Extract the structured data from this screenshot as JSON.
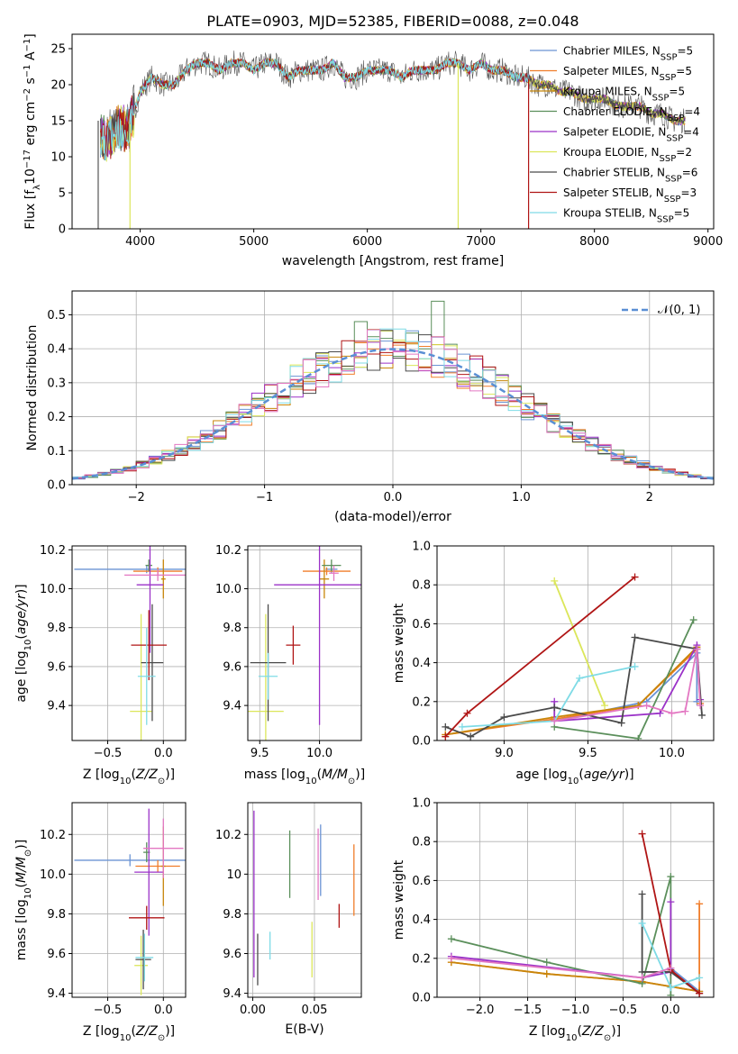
{
  "figure": {
    "title": "PLATE=0903, MJD=52385, FIBERID=0088, z=0.048"
  },
  "colors": {
    "Chabrier MILES": "#6a93d4",
    "Salpeter MILES": "#f07d2a",
    "Kroupa MILES": "#c8860a",
    "Chabrier ELODIE": "#5b8f5b",
    "Salpeter ELODIE": "#9b32c8",
    "Kroupa ELODIE": "#dbe65a",
    "Chabrier STELIB": "#4a4a4a",
    "Salpeter STELIB": "#b01515",
    "Kroupa STELIB": "#7fdbe6",
    "pink": "#e377c2"
  },
  "chart_data": [
    {
      "id": "spectrum",
      "type": "line",
      "xlabel": "wavelength [Angstrom, rest frame]",
      "ylabel": "Flux [f_λ10^-17 erg cm^-2 s^-1 A^-1]",
      "xlim": [
        3400,
        9050
      ],
      "ylim": [
        0,
        27
      ],
      "xticks": [
        4000,
        5000,
        6000,
        7000,
        8000,
        9000
      ],
      "yticks": [
        0,
        5,
        10,
        15,
        20,
        25
      ],
      "grid": false,
      "legend_position": "upper right",
      "legend": [
        {
          "name": "Chabrier MILES",
          "nssp": "5"
        },
        {
          "name": "Salpeter MILES",
          "nssp": "5"
        },
        {
          "name": "Kroupa MILES",
          "nssp": "5"
        },
        {
          "name": "Chabrier ELODIE",
          "nssp": "4"
        },
        {
          "name": "Salpeter ELODIE",
          "nssp": "4"
        },
        {
          "name": "Kroupa ELODIE",
          "nssp": "2"
        },
        {
          "name": "Chabrier STELIB",
          "nssp": "6"
        },
        {
          "name": "Salpeter STELIB",
          "nssp": "3"
        },
        {
          "name": "Kroupa STELIB",
          "nssp": "5"
        }
      ],
      "data_x": [
        3650,
        3700,
        3800,
        3900,
        4000,
        4100,
        4200,
        4300,
        4400,
        4500,
        4600,
        4700,
        4800,
        4900,
        5000,
        5100,
        5200,
        5300,
        5400,
        5500,
        5600,
        5700,
        5800,
        5900,
        6000,
        6100,
        6200,
        6300,
        6400,
        6500,
        6600,
        6700,
        6800,
        6900,
        7000,
        7100,
        7200,
        7300,
        7400,
        7500,
        7600,
        7700,
        7800,
        7900,
        8000,
        8100,
        8200,
        8300,
        8400,
        8500,
        8600,
        8700,
        8800
      ],
      "data_y": [
        13,
        12,
        14,
        14,
        19,
        21,
        20,
        20,
        22,
        23,
        23,
        22,
        23,
        23,
        22,
        23,
        23,
        21,
        22,
        22,
        22,
        23,
        21,
        21,
        22,
        22,
        22,
        21,
        22,
        22,
        22,
        23,
        23,
        22,
        23,
        22,
        22,
        21,
        21,
        20,
        20,
        19,
        19,
        18,
        18,
        18,
        17,
        17,
        17,
        16,
        16,
        15,
        15
      ]
    },
    {
      "id": "residuals",
      "type": "histogram",
      "xlabel": "(data-model)/error",
      "ylabel": "Normed distribution",
      "xlim": [
        -2.5,
        2.5
      ],
      "ylim": [
        0,
        0.57
      ],
      "xticks": [
        -2,
        -1,
        0,
        1,
        2
      ],
      "yticks": [
        0.0,
        0.1,
        0.2,
        0.3,
        0.4,
        0.5
      ],
      "grid": true,
      "legend_label": "𝒩(0, 1)",
      "bin_edges_start": -2.5,
      "bin_width": 0.1
    },
    {
      "id": "age_vs_Z",
      "type": "errorbar",
      "xlabel": "Z [log10(Z/Z⊙)]",
      "ylabel": "age [log10(age/yr)]",
      "xlim": [
        -0.82,
        0.2
      ],
      "ylim": [
        9.22,
        10.22
      ],
      "xticks": [
        -0.5,
        0.0
      ],
      "yticks": [
        9.4,
        9.6,
        9.8,
        10.0,
        10.2
      ],
      "points": [
        {
          "series": "Chabrier MILES",
          "x": -0.15,
          "y": 10.1,
          "xerr": 0.65,
          "yerr": 0.02
        },
        {
          "series": "Salpeter MILES",
          "x": -0.05,
          "y": 10.09,
          "xerr": 0.22,
          "yerr": 0.02
        },
        {
          "series": "Kroupa MILES",
          "x": 0.0,
          "y": 10.05,
          "xerr": 0.02,
          "yerr": 0.1
        },
        {
          "series": "Chabrier ELODIE",
          "x": -0.13,
          "y": 10.12,
          "xerr": 0.03,
          "yerr": 0.03
        },
        {
          "series": "Salpeter ELODIE",
          "x": -0.12,
          "y": 10.02,
          "xerr": 0.12,
          "yerr": 0.35
        },
        {
          "series": "Kroupa ELODIE",
          "x": -0.2,
          "y": 9.37,
          "xerr": 0.1,
          "yerr": 0.5
        },
        {
          "series": "Chabrier STELIB",
          "x": -0.1,
          "y": 9.62,
          "xerr": 0.1,
          "yerr": 0.3
        },
        {
          "series": "Salpeter STELIB",
          "x": -0.13,
          "y": 9.71,
          "xerr": 0.16,
          "yerr": 0.18
        },
        {
          "series": "Kroupa STELIB",
          "x": -0.15,
          "y": 9.55,
          "xerr": 0.08,
          "yerr": 0.25
        },
        {
          "series": "pink",
          "x": -0.05,
          "y": 10.07,
          "xerr": 0.3,
          "yerr": 0.03
        }
      ]
    },
    {
      "id": "age_vs_mass",
      "type": "errorbar",
      "xlabel": "mass [log10(M/M⊙)]",
      "ylabel": "",
      "xlim": [
        9.4,
        10.35
      ],
      "ylim": [
        9.22,
        10.22
      ],
      "xticks": [
        9.5,
        10.0
      ],
      "yticks": [
        9.4,
        9.6,
        9.8,
        10.0,
        10.2
      ],
      "points": [
        {
          "series": "Chabrier MILES",
          "x": 10.1,
          "y": 10.1,
          "xerr": 0.05,
          "yerr": 0.02
        },
        {
          "series": "Salpeter MILES",
          "x": 10.06,
          "y": 10.09,
          "xerr": 0.2,
          "yerr": 0.02
        },
        {
          "series": "Kroupa MILES",
          "x": 10.04,
          "y": 10.05,
          "xerr": 0.04,
          "yerr": 0.1
        },
        {
          "series": "Chabrier ELODIE",
          "x": 10.1,
          "y": 10.12,
          "xerr": 0.08,
          "yerr": 0.03
        },
        {
          "series": "Salpeter ELODIE",
          "x": 10.0,
          "y": 10.02,
          "xerr": 0.38,
          "yerr": 0.72
        },
        {
          "series": "Kroupa ELODIE",
          "x": 9.55,
          "y": 9.37,
          "xerr": 0.15,
          "yerr": 0.5
        },
        {
          "series": "Chabrier STELIB",
          "x": 9.57,
          "y": 9.62,
          "xerr": 0.15,
          "yerr": 0.3
        },
        {
          "series": "Salpeter STELIB",
          "x": 9.78,
          "y": 9.71,
          "xerr": 0.06,
          "yerr": 0.1
        },
        {
          "series": "Kroupa STELIB",
          "x": 9.57,
          "y": 9.55,
          "xerr": 0.08,
          "yerr": 0.12
        },
        {
          "series": "pink",
          "x": 10.12,
          "y": 10.08,
          "xerr": 0.04,
          "yerr": 0.04
        }
      ]
    },
    {
      "id": "weight_vs_age",
      "type": "line",
      "xlabel": "age [log10(age/yr)]",
      "ylabel": "mass weight",
      "xlim": [
        8.6,
        10.25
      ],
      "ylim": [
        0,
        1.0
      ],
      "xticks": [
        9.0,
        9.5,
        10.0
      ],
      "yticks": [
        0.0,
        0.2,
        0.4,
        0.6,
        0.8,
        1.0
      ],
      "series": [
        {
          "name": "Chabrier MILES",
          "x": [
            9.3,
            9.85,
            10.15,
            10.15
          ],
          "y": [
            0.1,
            0.2,
            0.45,
            0.2
          ]
        },
        {
          "name": "Salpeter MILES",
          "x": [
            8.65,
            9.3,
            9.8,
            10.15,
            10.17
          ],
          "y": [
            0.03,
            0.11,
            0.18,
            0.47,
            0.19
          ]
        },
        {
          "name": "Kroupa MILES",
          "x": [
            8.65,
            9.3,
            9.8,
            10.15
          ],
          "y": [
            0.03,
            0.12,
            0.18,
            0.48
          ]
        },
        {
          "name": "Chabrier ELODIE",
          "x": [
            9.3,
            9.8,
            10.13
          ],
          "y": [
            0.07,
            0.01,
            0.62
          ]
        },
        {
          "name": "Salpeter ELODIE",
          "x": [
            9.3,
            9.3,
            9.93,
            10.15,
            10.17
          ],
          "y": [
            0.2,
            0.1,
            0.14,
            0.49,
            0.21
          ]
        },
        {
          "name": "Kroupa ELODIE",
          "x": [
            9.3,
            9.6
          ],
          "y": [
            0.82,
            0.18
          ]
        },
        {
          "name": "Chabrier STELIB",
          "x": [
            8.65,
            8.8,
            9.0,
            9.3,
            9.7,
            9.78,
            10.15,
            10.18
          ],
          "y": [
            0.07,
            0.02,
            0.12,
            0.17,
            0.09,
            0.53,
            0.47,
            0.13
          ]
        },
        {
          "name": "Salpeter STELIB",
          "x": [
            8.65,
            8.78,
            9.78
          ],
          "y": [
            0.02,
            0.14,
            0.84
          ]
        },
        {
          "name": "Kroupa STELIB",
          "x": [
            8.75,
            9.3,
            9.45,
            9.78
          ],
          "y": [
            0.07,
            0.1,
            0.32,
            0.38
          ]
        },
        {
          "name": "pink",
          "x": [
            9.3,
            9.85,
            10.0,
            10.08,
            10.15,
            10.17
          ],
          "y": [
            0.1,
            0.18,
            0.14,
            0.15,
            0.47,
            0.18
          ]
        }
      ]
    },
    {
      "id": "mass_vs_Z",
      "type": "errorbar",
      "xlabel": "Z [log10(Z/Z⊙)]",
      "ylabel": "mass [log10(M/M⊙)]",
      "xlim": [
        -0.82,
        0.2
      ],
      "ylim": [
        9.38,
        10.36
      ],
      "xticks": [
        -0.5,
        0.0
      ],
      "yticks": [
        9.4,
        9.6,
        9.8,
        10.0,
        10.2
      ],
      "points": [
        {
          "series": "Chabrier MILES",
          "x": -0.3,
          "y": 10.07,
          "xerr": 0.5,
          "yerr": 0.03
        },
        {
          "series": "Salpeter MILES",
          "x": -0.05,
          "y": 10.04,
          "xerr": 0.2,
          "yerr": 0.03
        },
        {
          "series": "Kroupa MILES",
          "x": 0.0,
          "y": 10.04,
          "xerr": 0.02,
          "yerr": 0.2
        },
        {
          "series": "Chabrier ELODIE",
          "x": -0.15,
          "y": 10.11,
          "xerr": 0.03,
          "yerr": 0.05
        },
        {
          "series": "Salpeter ELODIE",
          "x": -0.13,
          "y": 10.01,
          "xerr": 0.13,
          "yerr": 0.32
        },
        {
          "series": "Kroupa ELODIE",
          "x": -0.2,
          "y": 9.54,
          "xerr": 0.06,
          "yerr": 0.15
        },
        {
          "series": "Chabrier STELIB",
          "x": -0.18,
          "y": 9.57,
          "xerr": 0.07,
          "yerr": 0.15
        },
        {
          "series": "Salpeter STELIB",
          "x": -0.15,
          "y": 9.78,
          "xerr": 0.16,
          "yerr": 0.06
        },
        {
          "series": "Kroupa STELIB",
          "x": -0.17,
          "y": 9.58,
          "xerr": 0.08,
          "yerr": 0.12
        },
        {
          "series": "pink",
          "x": 0.0,
          "y": 10.13,
          "xerr": 0.18,
          "yerr": 0.15
        }
      ]
    },
    {
      "id": "mass_vs_EBV",
      "type": "errorbar",
      "xlabel": "E(B-V)",
      "ylabel": "",
      "xlim": [
        -0.004,
        0.088
      ],
      "ylim": [
        9.38,
        10.36
      ],
      "xticks": [
        0.0,
        0.05
      ],
      "yticks": [
        9.4,
        9.6,
        9.8,
        10.0,
        10.2
      ],
      "points": [
        {
          "series": "Chabrier MILES",
          "x": 0.055,
          "y": 10.07,
          "xerr": 0,
          "yerr": 0.18
        },
        {
          "series": "Salpeter MILES",
          "x": 0.082,
          "y": 9.97,
          "xerr": 0,
          "yerr": 0.18
        },
        {
          "series": "Chabrier ELODIE",
          "x": 0.03,
          "y": 10.05,
          "xerr": 0,
          "yerr": 0.17
        },
        {
          "series": "Salpeter ELODIE",
          "x": 0.001,
          "y": 9.9,
          "xerr": 0,
          "yerr": 0.42
        },
        {
          "series": "Kroupa ELODIE",
          "x": 0.048,
          "y": 9.62,
          "xerr": 0,
          "yerr": 0.14
        },
        {
          "series": "Chabrier STELIB",
          "x": 0.004,
          "y": 9.57,
          "xerr": 0,
          "yerr": 0.13
        },
        {
          "series": "Salpeter STELIB",
          "x": 0.07,
          "y": 9.79,
          "xerr": 0,
          "yerr": 0.06
        },
        {
          "series": "Kroupa STELIB",
          "x": 0.014,
          "y": 9.64,
          "xerr": 0,
          "yerr": 0.07
        },
        {
          "series": "pink",
          "x": 0.053,
          "y": 10.05,
          "xerr": 0,
          "yerr": 0.18
        }
      ]
    },
    {
      "id": "weight_vs_Z",
      "type": "line",
      "xlabel": "Z [log10(Z/Z⊙)]",
      "ylabel": "mass weight",
      "xlim": [
        -2.45,
        0.45
      ],
      "ylim": [
        0,
        1.0
      ],
      "xticks": [
        -2.0,
        -1.5,
        -1.0,
        -0.5,
        0.0
      ],
      "yticks": [
        0.0,
        0.2,
        0.4,
        0.6,
        0.8,
        1.0
      ],
      "series": [
        {
          "name": "Chabrier MILES",
          "x": [
            -0.3,
            0.0,
            0.3
          ],
          "y": [
            0.1,
            0.15,
            0.03
          ]
        },
        {
          "name": "Salpeter MILES",
          "x": [
            -2.3,
            -1.3,
            -0.3,
            0.3,
            0.3
          ],
          "y": [
            0.18,
            0.12,
            0.08,
            0.03,
            0.48
          ]
        },
        {
          "name": "Kroupa MILES",
          "x": [
            -2.3,
            -1.3,
            -0.3,
            0.3
          ],
          "y": [
            0.18,
            0.12,
            0.08,
            0.03
          ]
        },
        {
          "name": "Chabrier ELODIE",
          "x": [
            -2.3,
            -1.3,
            -0.3,
            0.0,
            0.0
          ],
          "y": [
            0.3,
            0.18,
            0.07,
            0.62,
            0.01
          ]
        },
        {
          "name": "Salpeter ELODIE",
          "x": [
            -2.3,
            -0.3,
            0.0,
            0.0
          ],
          "y": [
            0.21,
            0.1,
            0.13,
            0.49
          ]
        },
        {
          "name": "Chabrier STELIB",
          "x": [
            -0.3,
            -0.3,
            0.0,
            0.3
          ],
          "y": [
            0.53,
            0.13,
            0.13,
            0.02
          ]
        },
        {
          "name": "Salpeter STELIB",
          "x": [
            -0.3,
            0.0,
            0.3
          ],
          "y": [
            0.84,
            0.14,
            0.02
          ]
        },
        {
          "name": "Kroupa STELIB",
          "x": [
            -0.3,
            0.0,
            0.3
          ],
          "y": [
            0.38,
            0.05,
            0.1
          ]
        },
        {
          "name": "pink",
          "x": [
            -2.3,
            -0.3,
            0.0
          ],
          "y": [
            0.2,
            0.1,
            0.15
          ]
        }
      ]
    }
  ]
}
